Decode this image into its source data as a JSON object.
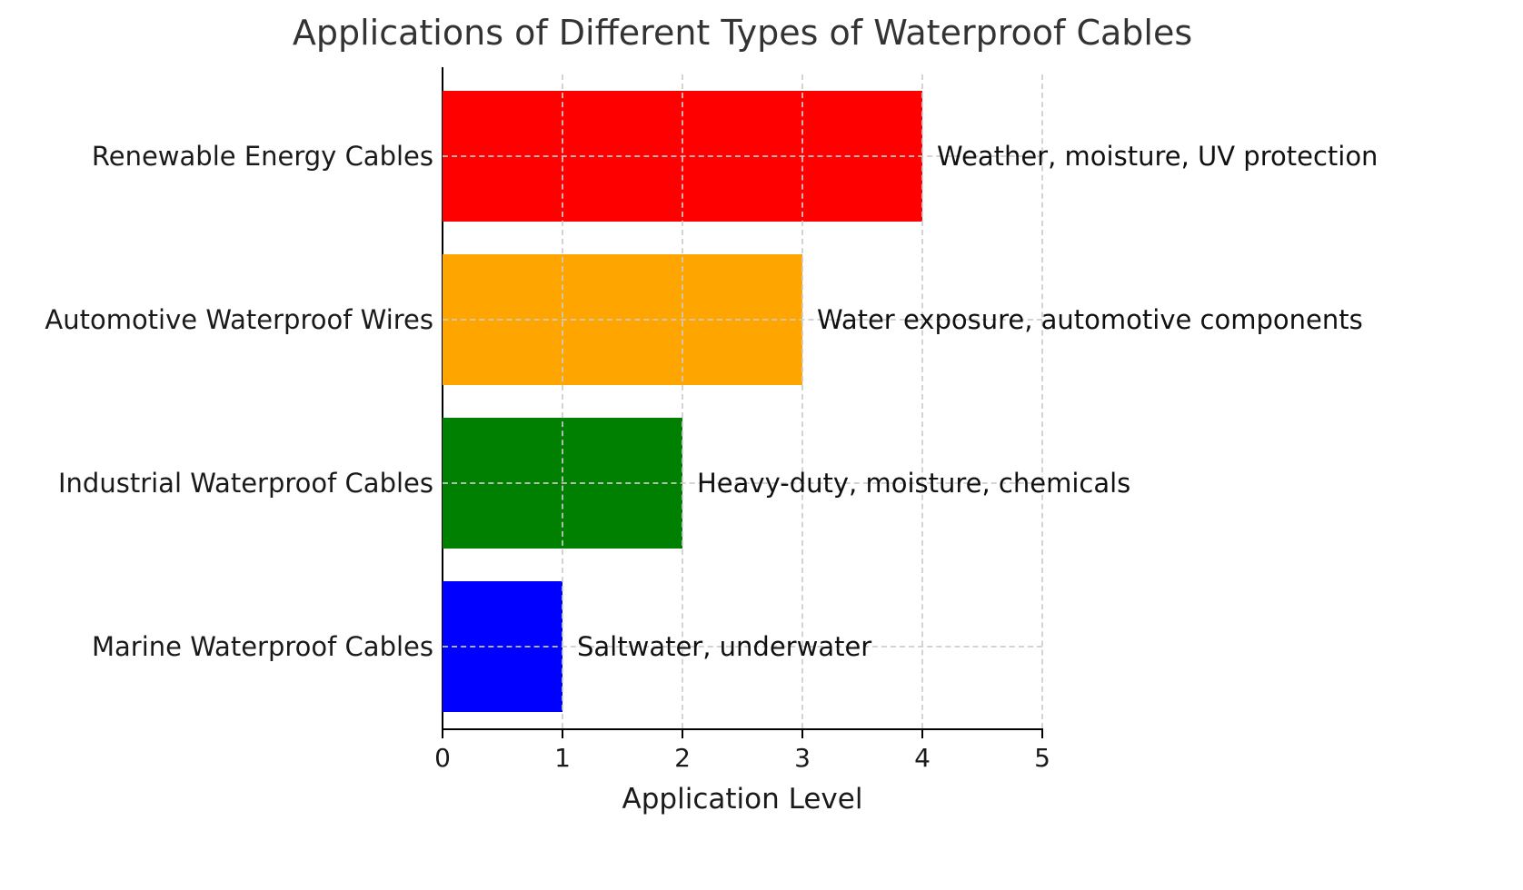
{
  "chart_data": {
    "type": "bar",
    "orientation": "horizontal",
    "title": "Applications of Different Types of Waterproof Cables",
    "xlabel": "Application Level",
    "ylabel": "",
    "categories": [
      "Renewable Energy Cables",
      "Automotive Waterproof Wires",
      "Industrial Waterproof Cables",
      "Marine Waterproof Cables"
    ],
    "values": [
      4,
      3,
      2,
      1
    ],
    "annotations": [
      "Weather, moisture, UV protection",
      "Water exposure, automotive components",
      "Heavy-duty, moisture, chemicals",
      "Saltwater, underwater"
    ],
    "colors": [
      "#ff0000",
      "#ffa500",
      "#008000",
      "#0000ff"
    ],
    "xlim": [
      0,
      5
    ],
    "xticks": [
      "0",
      "1",
      "2",
      "3",
      "4",
      "5"
    ],
    "grid": "on",
    "grid_style": "dashed",
    "grid_color": "#cccccc",
    "background_color": "#ffffff",
    "legend": "none"
  }
}
